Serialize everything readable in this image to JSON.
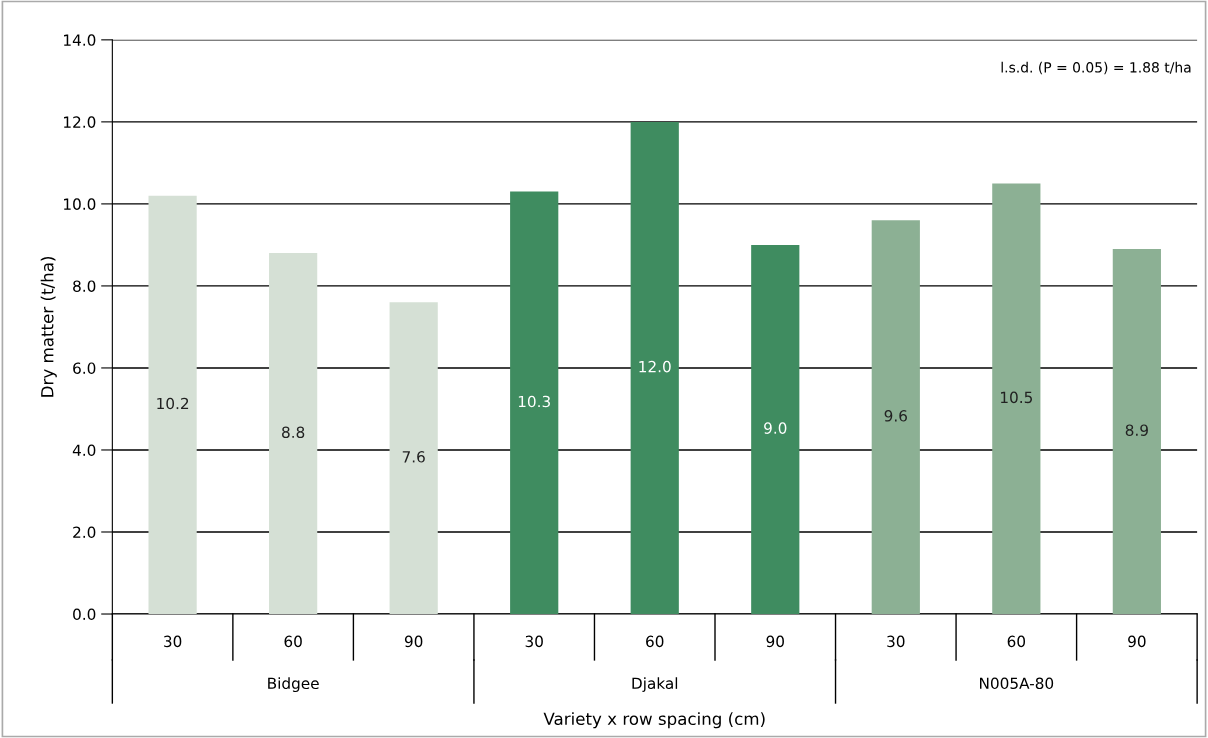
{
  "chart_data": {
    "type": "bar",
    "xlabel": "Variety x row spacing (cm)",
    "ylabel": "Dry matter (t/ha)",
    "categories": [
      "30",
      "60",
      "90",
      "30",
      "60",
      "90",
      "30",
      "60",
      "90"
    ],
    "values": [
      10.2,
      8.8,
      7.6,
      10.3,
      12.0,
      9.0,
      9.6,
      10.5,
      8.9
    ],
    "colors": [
      "#d5e0d5",
      "#d5e0d5",
      "#d5e0d5",
      "#3f8c60",
      "#3f8c60",
      "#3f8c60",
      "#8cb094",
      "#8cb094",
      "#8cb094"
    ],
    "value_labels": [
      "10.2",
      "8.8",
      "7.6",
      "10.3",
      "12.0",
      "9.0",
      "9.6",
      "10.5",
      "8.9"
    ],
    "ylim": [
      0,
      14
    ],
    "yticks": [
      {
        "value": 0,
        "label": "0.0"
      },
      {
        "value": 2,
        "label": "2.0"
      },
      {
        "value": 4,
        "label": "4.0"
      },
      {
        "value": 6,
        "label": "6.0"
      },
      {
        "value": 8,
        "label": "8.0"
      },
      {
        "value": 10,
        "label": "10.0"
      },
      {
        "value": 12,
        "label": "12.0"
      },
      {
        "value": 14,
        "label": "14.0"
      }
    ],
    "grid": "y",
    "annotations": [
      "l.s.d. (P = 0.05) = 1.88 t/ha",
      "Bidgee",
      "Djakal",
      "N005A-80"
    ]
  }
}
